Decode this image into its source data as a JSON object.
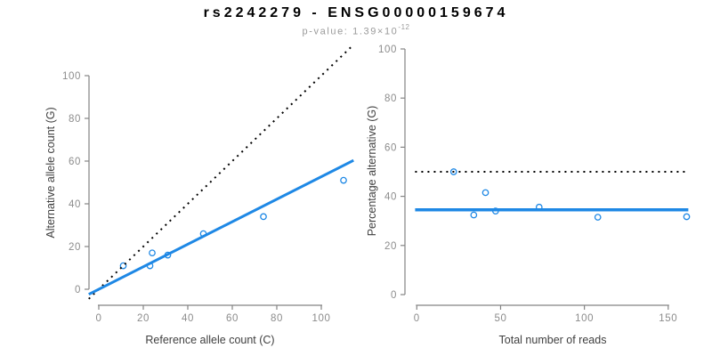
{
  "header": {
    "title": "rs2242279 - ENSG00000159674",
    "pvalue_label": "p-value: ",
    "pvalue_base": "1.39×10",
    "pvalue_exponent": "-12"
  },
  "colors": {
    "accent_blue": "#1E88E5",
    "identity_black": "#000000",
    "axis_gray": "#848484",
    "tick_label_gray": "#8c8c8c",
    "axis_title_gray": "#3f3f3f",
    "subtitle_gray": "#9a9a9a"
  },
  "chart_data": [
    {
      "type": "scatter",
      "panel": "left",
      "xlabel": "Reference allele count (C)",
      "ylabel": "Alternative allele count (G)",
      "x_ticks": [
        0,
        20,
        40,
        60,
        80,
        100
      ],
      "y_ticks": [
        0,
        20,
        40,
        60,
        80,
        100
      ],
      "xlim": [
        -4.5,
        114.5
      ],
      "ylim": [
        -4.5,
        114.5
      ],
      "grid": false,
      "legend": "none",
      "points": [
        [
          11,
          11
        ],
        [
          23,
          11
        ],
        [
          24,
          17
        ],
        [
          31,
          16
        ],
        [
          47,
          26
        ],
        [
          74,
          34
        ],
        [
          110,
          51
        ]
      ],
      "lines": [
        {
          "name": "identity-line",
          "slope": 1,
          "intercept": 0,
          "dash": "dotted",
          "color_key": "identity_black",
          "width": 2
        },
        {
          "name": "fit-line",
          "slope": 0.527,
          "intercept": 0,
          "dash": "solid",
          "color_key": "accent_blue",
          "width": 3
        }
      ]
    },
    {
      "type": "scatter",
      "panel": "right",
      "xlabel": "Total number of reads",
      "ylabel": "Percentage alternative (G)",
      "x_ticks": [
        0,
        50,
        100,
        150
      ],
      "y_ticks": [
        0,
        20,
        40,
        60,
        80,
        100
      ],
      "xlim": [
        -6.5,
        168
      ],
      "ylim": [
        -4,
        104
      ],
      "grid": false,
      "legend": "none",
      "points": [
        [
          22,
          50
        ],
        [
          34,
          32.4
        ],
        [
          41,
          41.5
        ],
        [
          47,
          34
        ],
        [
          73,
          35.6
        ],
        [
          108,
          31.5
        ],
        [
          161,
          31.7
        ]
      ],
      "hlines": [
        {
          "name": "expected-50pct-line",
          "y": 50,
          "dash": "dotted",
          "color_key": "identity_black",
          "width": 2,
          "span": [
            -1,
            162
          ]
        },
        {
          "name": "observed-pct-line",
          "y": 34.5,
          "dash": "solid",
          "color_key": "accent_blue",
          "width": 3.5,
          "span": [
            -1,
            162
          ]
        }
      ]
    }
  ]
}
